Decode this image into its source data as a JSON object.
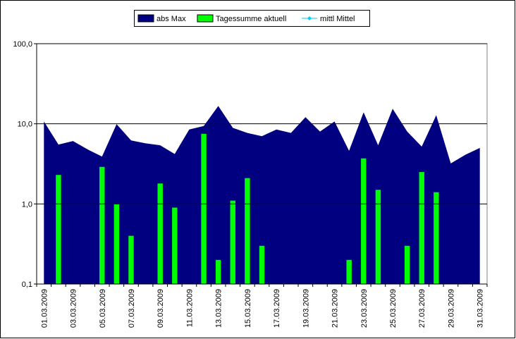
{
  "chart_data": {
    "type": "area-bar",
    "categories": [
      "01.03.2009",
      null,
      "03.03.2009",
      null,
      "05.03.2009",
      null,
      "07.03.2009",
      null,
      "09.03.2009",
      null,
      "11.03.2009",
      null,
      "13.03.2009",
      null,
      "15.03.2009",
      null,
      "17.03.2009",
      null,
      "19.03.2009",
      null,
      "21.03.2009",
      null,
      "23.03.2009",
      null,
      "25.03.2009",
      null,
      "27.03.2009",
      null,
      "29.03.2009",
      null,
      "31.03.2009"
    ],
    "series": [
      {
        "name": "abs Max",
        "kind": "area",
        "color": "#000080",
        "values": [
          10.7,
          5.5,
          6.1,
          4.8,
          3.9,
          9.9,
          6.2,
          5.7,
          5.4,
          4.2,
          8.5,
          9.4,
          16.7,
          8.9,
          7.7,
          7.0,
          8.5,
          7.7,
          12.1,
          8.0,
          10.7,
          4.6,
          13.9,
          5.4,
          15.4,
          8.0,
          5.2,
          12.8,
          3.2,
          4.1,
          5.0
        ]
      },
      {
        "name": "Tagessumme aktuell",
        "kind": "bar",
        "color": "#00ff00",
        "values": [
          null,
          2.3,
          null,
          null,
          2.9,
          1.0,
          0.4,
          null,
          1.8,
          0.9,
          null,
          7.5,
          0.2,
          1.1,
          2.1,
          0.3,
          null,
          null,
          null,
          null,
          null,
          0.2,
          3.7,
          1.5,
          null,
          0.3,
          2.5,
          1.4,
          null,
          null,
          null
        ]
      },
      {
        "name": "mittl Mittel",
        "kind": "line",
        "color": "#00ccff",
        "values": [
          null,
          null,
          null,
          null,
          null,
          null,
          null,
          null,
          null,
          null,
          null,
          null,
          null,
          null,
          null,
          null,
          null,
          null,
          null,
          null,
          null,
          null,
          null,
          null,
          null,
          null,
          null,
          null,
          null,
          null,
          null
        ]
      }
    ],
    "log_scale": true,
    "ylim": [
      0.1,
      100
    ],
    "yticks": [
      {
        "value": 0.1,
        "label": "0,1"
      },
      {
        "value": 1,
        "label": "1,0"
      },
      {
        "value": 10,
        "label": "10,0"
      },
      {
        "value": 100,
        "label": "100,0"
      }
    ],
    "grid": true,
    "legend": "top"
  }
}
